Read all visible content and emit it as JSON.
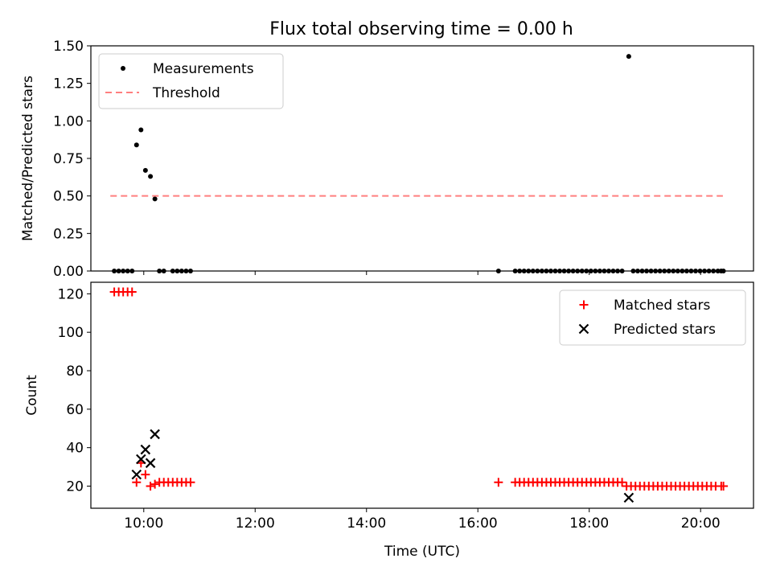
{
  "title": "Flux total observing time = 0.00 h",
  "chart_data": [
    {
      "type": "scatter",
      "ylabel": "Matched/Predicted stars",
      "xlim": [
        9.05,
        20.95
      ],
      "ylim": [
        0,
        1.5
      ],
      "yticks": [
        "0.00",
        "0.25",
        "0.50",
        "0.75",
        "1.00",
        "1.25",
        "1.50"
      ],
      "legend_position": "top-left",
      "series": [
        {
          "name": "Measurements",
          "marker": "dot",
          "color": "#000000",
          "x": [
            9.47,
            9.55,
            9.63,
            9.71,
            9.79,
            9.87,
            9.95,
            10.03,
            10.12,
            10.2,
            10.28,
            10.36,
            10.52,
            10.6,
            10.68,
            10.76,
            10.84,
            16.37,
            16.67,
            16.75,
            16.83,
            16.91,
            16.99,
            17.07,
            17.15,
            17.23,
            17.31,
            17.39,
            17.47,
            17.55,
            17.63,
            17.71,
            17.79,
            17.87,
            17.95,
            18.03,
            18.11,
            18.19,
            18.27,
            18.35,
            18.43,
            18.51,
            18.59,
            18.71,
            18.79,
            18.87,
            18.95,
            19.03,
            19.11,
            19.19,
            19.27,
            19.35,
            19.43,
            19.51,
            19.59,
            19.67,
            19.75,
            19.83,
            19.91,
            19.99,
            20.07,
            20.15,
            20.23,
            20.31,
            20.37,
            20.41
          ],
          "y": [
            0,
            0,
            0,
            0,
            0,
            0.84,
            0.94,
            0.67,
            0.63,
            0.48,
            0,
            0,
            0,
            0,
            0,
            0,
            0,
            0,
            0,
            0,
            0,
            0,
            0,
            0,
            0,
            0,
            0,
            0,
            0,
            0,
            0,
            0,
            0,
            0,
            0,
            0,
            0,
            0,
            0,
            0,
            0,
            0,
            0,
            1.43,
            0,
            0,
            0,
            0,
            0,
            0,
            0,
            0,
            0,
            0,
            0,
            0,
            0,
            0,
            0,
            0,
            0,
            0,
            0,
            0,
            0,
            0
          ]
        },
        {
          "name": "Threshold",
          "marker": "dashed-line",
          "color": "#ff7f7f",
          "x": [
            9.4,
            20.4
          ],
          "y": [
            0.5,
            0.5
          ]
        }
      ]
    },
    {
      "type": "scatter",
      "xlabel": "Time (UTC)",
      "ylabel": "Count",
      "xlim": [
        9.05,
        20.95
      ],
      "ylim": [
        8.5,
        126
      ],
      "yticks": [
        "20",
        "40",
        "60",
        "80",
        "100",
        "120"
      ],
      "xticks": [
        "10:00",
        "12:00",
        "14:00",
        "16:00",
        "18:00",
        "20:00"
      ],
      "legend_position": "top-right",
      "series": [
        {
          "name": "Matched stars",
          "marker": "plus",
          "color": "#ff0000",
          "x": [
            9.47,
            9.55,
            9.63,
            9.71,
            9.79,
            9.87,
            9.95,
            10.03,
            10.12,
            10.2,
            10.28,
            10.36,
            10.44,
            10.52,
            10.6,
            10.68,
            10.76,
            10.84,
            16.37,
            16.67,
            16.75,
            16.83,
            16.91,
            16.99,
            17.07,
            17.15,
            17.23,
            17.31,
            17.39,
            17.47,
            17.55,
            17.63,
            17.71,
            17.79,
            17.87,
            17.95,
            18.03,
            18.11,
            18.19,
            18.27,
            18.35,
            18.43,
            18.51,
            18.59,
            18.67,
            18.75,
            18.83,
            18.91,
            18.99,
            19.07,
            19.15,
            19.23,
            19.31,
            19.39,
            19.47,
            19.55,
            19.63,
            19.71,
            19.79,
            19.87,
            19.95,
            20.03,
            20.11,
            20.19,
            20.27,
            20.37,
            20.41
          ],
          "y": [
            121,
            121,
            121,
            121,
            121,
            22,
            32,
            26,
            20,
            21,
            22,
            22,
            22,
            22,
            22,
            22,
            22,
            22,
            22,
            22,
            22,
            22,
            22,
            22,
            22,
            22,
            22,
            22,
            22,
            22,
            22,
            22,
            22,
            22,
            22,
            22,
            22,
            22,
            22,
            22,
            22,
            22,
            22,
            22,
            20,
            20,
            20,
            20,
            20,
            20,
            20,
            20,
            20,
            20,
            20,
            20,
            20,
            20,
            20,
            20,
            20,
            20,
            20,
            20,
            20,
            20,
            20
          ]
        },
        {
          "name": "Predicted stars",
          "marker": "x",
          "color": "#000000",
          "x": [
            9.87,
            9.95,
            10.03,
            10.12,
            10.2,
            18.71
          ],
          "y": [
            26,
            34,
            39,
            32,
            47,
            14
          ]
        }
      ]
    }
  ]
}
